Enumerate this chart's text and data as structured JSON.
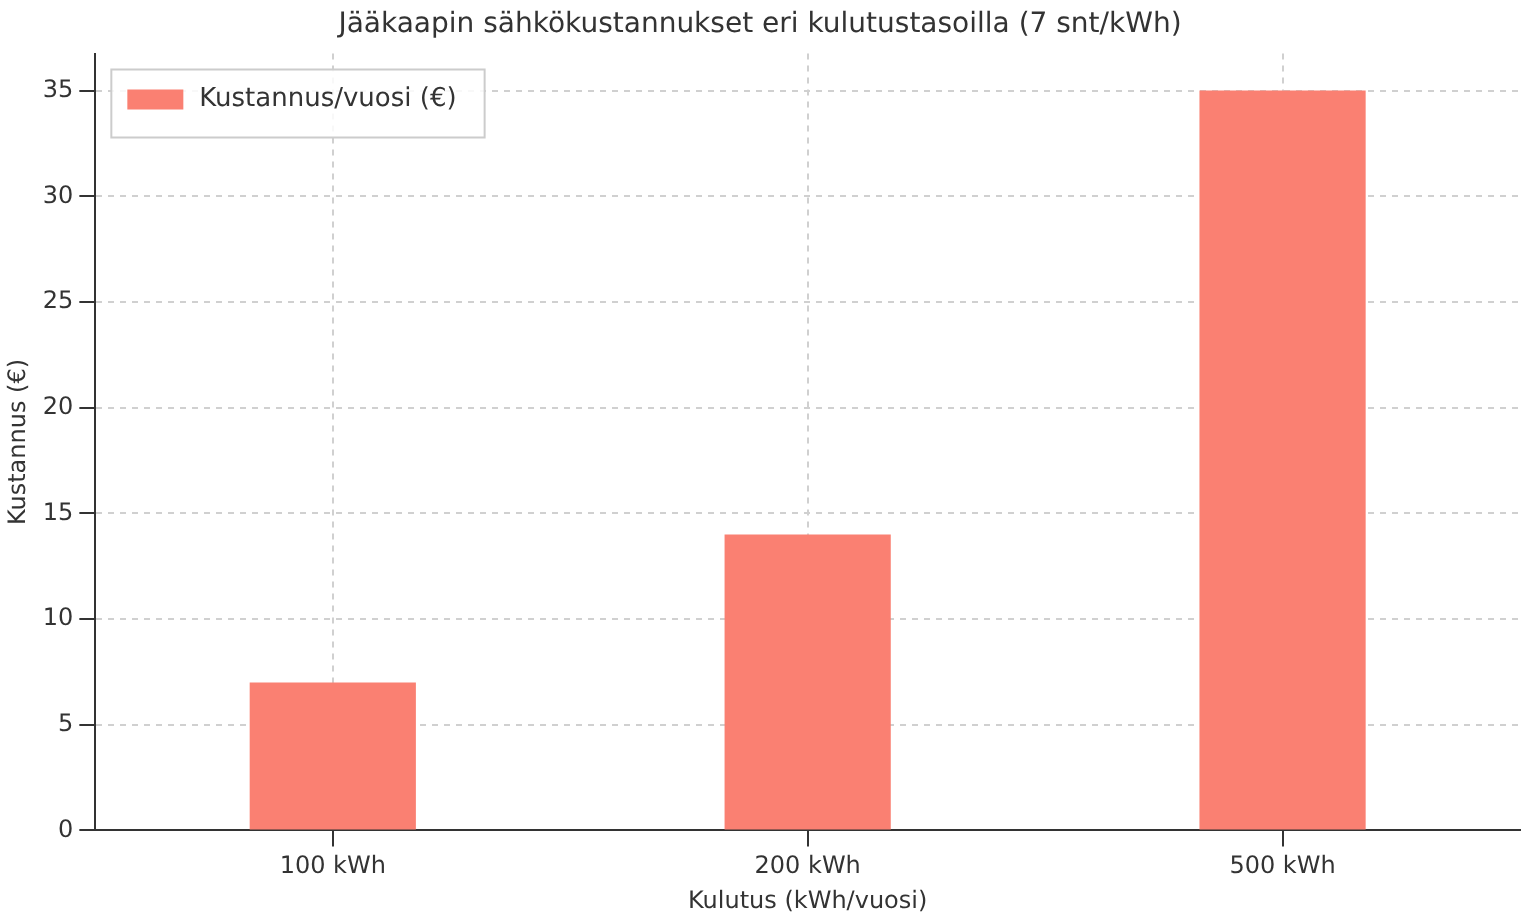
{
  "chart_data": {
    "type": "bar",
    "title": "Jääkaapin sähkökustannukset eri kulutustasoilla (7 snt/kWh)",
    "xlabel": "Kulutus (kWh/vuosi)",
    "ylabel": "Kustannus (€)",
    "categories": [
      "100 kWh",
      "200 kWh",
      "500 kWh"
    ],
    "series": [
      {
        "name": "Kustannus/vuosi (€)",
        "color": "#fa8072",
        "values": [
          7,
          14,
          35
        ]
      }
    ],
    "ylim": [
      0,
      36.75
    ],
    "yticks": [
      0,
      5,
      10,
      15,
      20,
      25,
      30,
      35
    ],
    "grid": true,
    "legend": "top left"
  }
}
